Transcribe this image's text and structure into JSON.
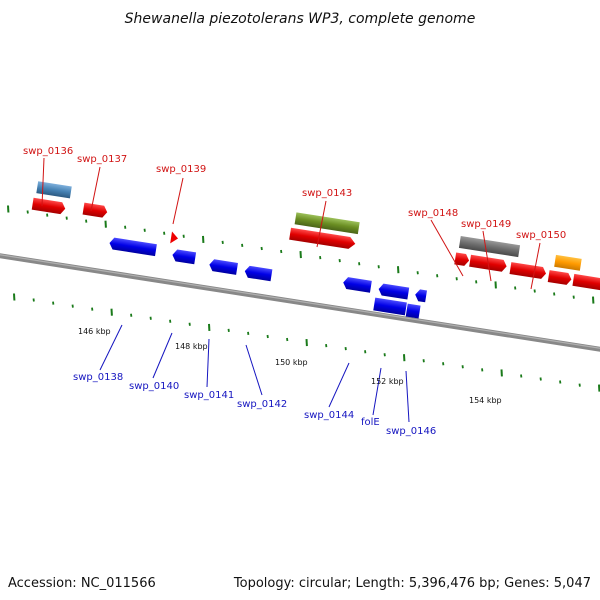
{
  "title": "Shewanella piezotolerans WP3, complete genome",
  "footer": {
    "accession": "Accession: NC_011566",
    "summary": "Topology: circular; Length: 5,396,476 bp; Genes: 5,047"
  },
  "colors": {
    "forward_label": "#d11414",
    "reverse_label": "#1515c0",
    "backbone": "#7a7a7a",
    "ticks": "#1a7a1a"
  },
  "scale_labels": [
    "146 kbp",
    "148 kbp",
    "150 kbp",
    "152 kbp",
    "154 kbp"
  ],
  "gene_labels": {
    "forward": [
      "swp_0136",
      "swp_0137",
      "swp_0139",
      "swp_0143",
      "swp_0148",
      "swp_0149",
      "swp_0150"
    ],
    "reverse": [
      "swp_0138",
      "swp_0140",
      "swp_0141",
      "swp_0142",
      "swp_0144",
      "folE",
      "swp_0146"
    ]
  }
}
